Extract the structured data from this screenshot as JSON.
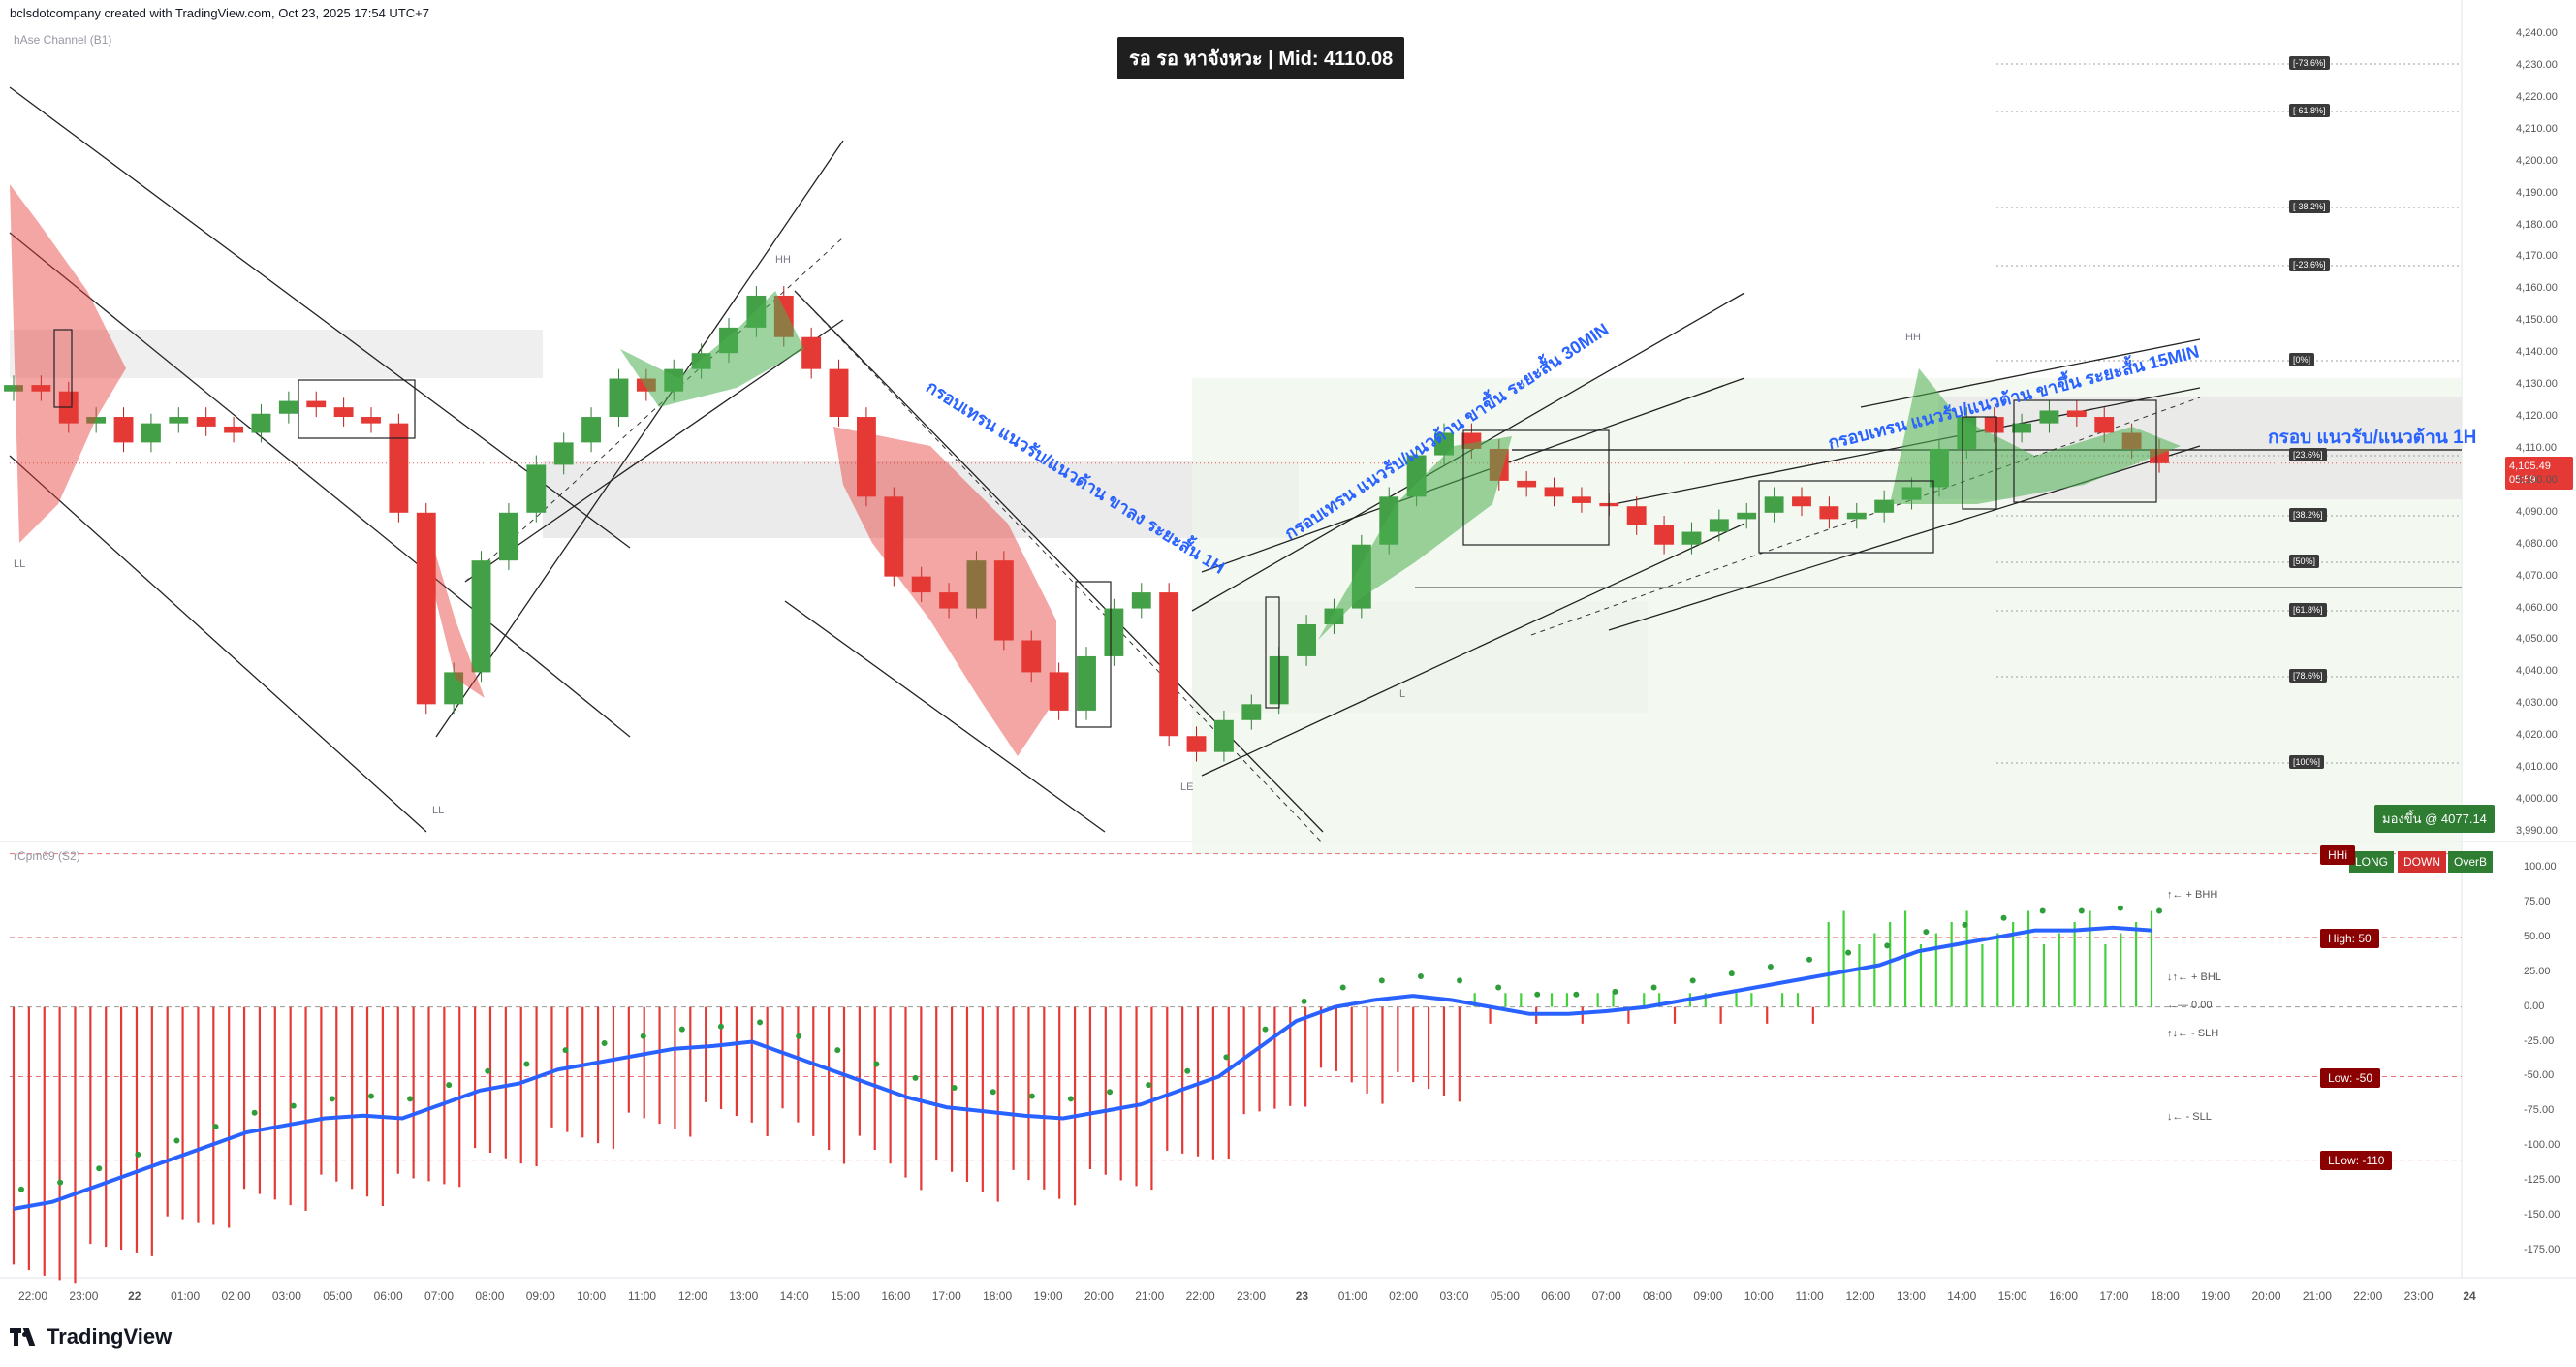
{
  "header": {
    "created_by": "bclsdotcompany created with TradingView.com, Oct 23, 2025 17:54 UTC+7",
    "indicator_top": "hAse Channel (B1)",
    "indicator_bottom": "rCpm69 (S2)"
  },
  "title_box": "รอ รอ หาจังหวะ | Mid: 4110.08",
  "brand": "TradingView",
  "annotations": {
    "a1": "กรอบเทรน แนวรับ/แนวต้าน ขาลง ระยะสั้น 1H",
    "a2": "กรอบเทรน แนวรับ/แนวต้าน ขาขึ้น ระยะสั้น 30MIN",
    "a3": "กรอบเทรน แนวรับ/แนวต้าน ขาขึ้น ระยะสั้น 15MIN",
    "a4": "กรอบ แนวรับ/แนวต้าน 1H"
  },
  "pivots": {
    "hh": "HH",
    "ll": "LL",
    "l": "L",
    "le": "LE"
  },
  "fib_labels": [
    "[-73.6%]",
    "[-61.8%]",
    "[-38.2%]",
    "[-23.6%]",
    "[0%]",
    "[23.6%]",
    "[38.2%]",
    "[50%]",
    "[61.8%]",
    "[78.6%]",
    "[100%]"
  ],
  "price_tag": {
    "price": "4,105.49",
    "countdown": "05:59"
  },
  "green_tag": "มองขึ้น @ 4077.14",
  "status_buttons": [
    "LONG",
    "DOWN",
    "OverB"
  ],
  "level_tags": {
    "hhigh": "HHi",
    "high": "High: 50",
    "low": "Low: -50",
    "llow": "LLow: -110"
  },
  "osc_labels": {
    "bhh": "↑← + BHH",
    "bhl": "↓↑← + BHL",
    "zero": "←— 0.00",
    "slh": "↑↓← - SLH",
    "sll": "↓← - SLL"
  },
  "colors": {
    "bull": "#26a69a",
    "bear": "#ef5350",
    "green_fill": "#4caf50",
    "red_fill": "#e53935",
    "osc_blue": "#2962ff",
    "level_red": "#8b0000"
  },
  "chart_data": {
    "type": "candlestick",
    "symbol_price_range": [
      3990,
      4240
    ],
    "price_axis_ticks": [
      "4,240.00",
      "4,230.00",
      "4,220.00",
      "4,210.00",
      "4,200.00",
      "4,190.00",
      "4,180.00",
      "4,170.00",
      "4,160.00",
      "4,150.00",
      "4,140.00",
      "4,130.00",
      "4,120.00",
      "4,110.00",
      "4,100.00",
      "4,090.00",
      "4,080.00",
      "4,070.00",
      "4,060.00",
      "4,050.00",
      "4,040.00",
      "4,030.00",
      "4,020.00",
      "4,010.00",
      "4,000.00",
      "3,990.00"
    ],
    "oscillator_ticks": [
      "100.00",
      "75.00",
      "50.00",
      "25.00",
      "0.00",
      "-25.00",
      "-50.00",
      "-75.00",
      "-100.00",
      "-125.00",
      "-150.00",
      "-175.00"
    ],
    "oscillator_levels": [
      50,
      0,
      -50,
      -110
    ],
    "time_ticks": [
      "22:00",
      "23:00",
      "22",
      "01:00",
      "02:00",
      "03:00",
      "05:00",
      "06:00",
      "07:00",
      "08:00",
      "09:00",
      "10:00",
      "11:00",
      "12:00",
      "13:00",
      "14:00",
      "15:00",
      "16:00",
      "17:00",
      "18:00",
      "19:00",
      "20:00",
      "21:00",
      "22:00",
      "23:00",
      "23",
      "01:00",
      "02:00",
      "03:00",
      "05:00",
      "06:00",
      "07:00",
      "08:00",
      "09:00",
      "10:00",
      "11:00",
      "12:00",
      "13:00",
      "14:00",
      "15:00",
      "16:00",
      "17:00",
      "18:00",
      "19:00",
      "20:00",
      "21:00",
      "22:00",
      "23:00",
      "24"
    ],
    "last_price": 4105.49,
    "close_path": [
      4130,
      4128,
      4118,
      4120,
      4112,
      4118,
      4120,
      4117,
      4115,
      4121,
      4125,
      4123,
      4120,
      4118,
      4090,
      4030,
      4040,
      4075,
      4090,
      4105,
      4112,
      4120,
      4132,
      4128,
      4135,
      4140,
      4148,
      4158,
      4145,
      4135,
      4120,
      4095,
      4070,
      4065,
      4060,
      4075,
      4050,
      4040,
      4028,
      4045,
      4060,
      4065,
      4020,
      4015,
      4025,
      4030,
      4045,
      4055,
      4060,
      4080,
      4095,
      4108,
      4115,
      4110,
      4100,
      4098,
      4095,
      4093,
      4092,
      4086,
      4080,
      4084,
      4088,
      4090,
      4095,
      4092,
      4088,
      4090,
      4094,
      4098,
      4110,
      4120,
      4115,
      4118,
      4122,
      4120,
      4115,
      4110,
      4105.49
    ],
    "oscillator_path": [
      -145,
      -140,
      -130,
      -120,
      -110,
      -100,
      -90,
      -85,
      -80,
      -78,
      -80,
      -70,
      -60,
      -55,
      -45,
      -40,
      -35,
      -30,
      -28,
      -25,
      -35,
      -45,
      -55,
      -65,
      -72,
      -75,
      -78,
      -80,
      -75,
      -70,
      -60,
      -50,
      -30,
      -10,
      0,
      5,
      8,
      5,
      0,
      -5,
      -5,
      -3,
      0,
      5,
      10,
      15,
      20,
      25,
      30,
      40,
      45,
      50,
      55,
      55,
      57,
      55
    ]
  }
}
